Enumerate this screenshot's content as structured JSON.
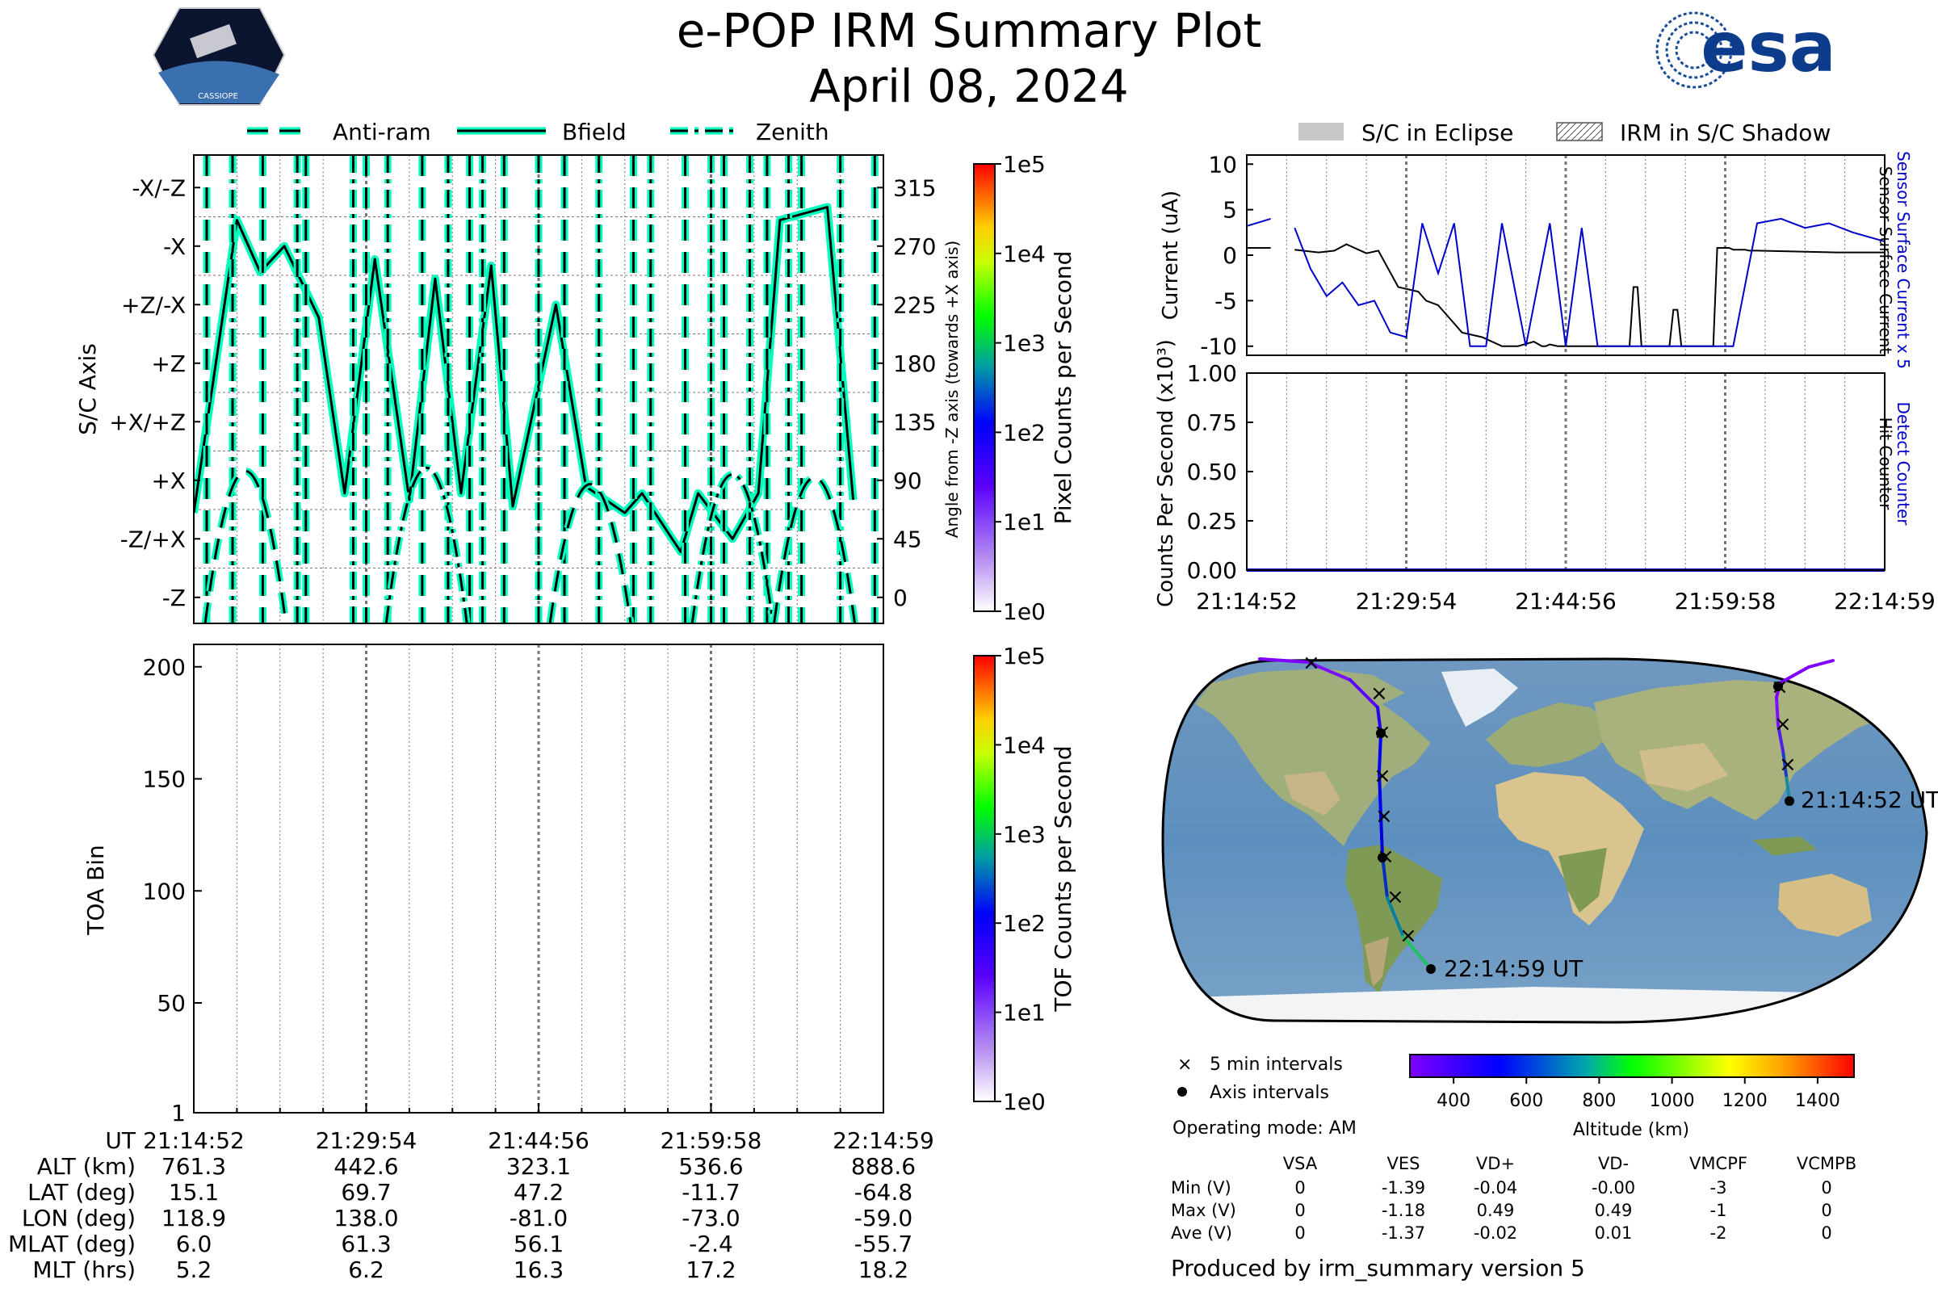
{
  "header": {
    "title": "e-POP IRM Summary Plot",
    "date": "April 08, 2024",
    "left_logo_text": "CASSIOPE",
    "right_logo_text": "esa"
  },
  "orientation_legend": [
    "Anti-ram",
    "Bfield",
    "Zenith"
  ],
  "eclipse_legend": [
    "S/C in Eclipse",
    "IRM in S/C Shadow"
  ],
  "chart_data": [
    {
      "id": "orientation",
      "type": "line",
      "ylabel": "S/C Axis",
      "y_tick_labels": [
        "-X/-Z",
        "-X",
        "+Z/-X",
        "+Z",
        "+X/+Z",
        "+X",
        "-Z/+X",
        "-Z"
      ],
      "y2label": "Angle from -Z axis (towards +X axis)",
      "y2_ticks": [
        315,
        270,
        225,
        180,
        135,
        90,
        45,
        0
      ],
      "ylim": [
        -20,
        340
      ],
      "colorbar": {
        "label": "Pixel Counts per Second",
        "ticks": [
          "1e5",
          "1e4",
          "1e3",
          "1e2",
          "1e1",
          "1e0"
        ]
      },
      "series": [
        {
          "name": "Bfield",
          "x_min": [
            0,
            5,
            7.7,
            10.5,
            14.5,
            17.5,
            21,
            25,
            28,
            31,
            34.5,
            37,
            42,
            45.5,
            50,
            52,
            56.5,
            58.5,
            62.5,
            65.5,
            68,
            73.5,
            76.5
          ],
          "y": [
            65,
            290,
            250,
            270,
            215,
            80,
            260,
            75,
            245,
            80,
            255,
            70,
            225,
            85,
            65,
            80,
            35,
            80,
            45,
            80,
            290,
            300,
            75
          ]
        }
      ]
    },
    {
      "id": "toa",
      "type": "heatmap",
      "ylabel": "TOA Bin",
      "y_ticks": [
        200,
        150,
        100,
        50,
        1
      ],
      "ylim": [
        1,
        210
      ],
      "colorbar": {
        "label": "TOF Counts per Second",
        "ticks": [
          "1e5",
          "1e4",
          "1e3",
          "1e2",
          "1e1",
          "1e0"
        ]
      }
    },
    {
      "id": "current",
      "type": "line",
      "ylabel": "Current (uA)",
      "y_ticks": [
        10,
        5,
        0,
        -5,
        -10
      ],
      "ylim": [
        -11,
        11
      ],
      "right_labels": [
        "Sensor Surface Current x 5",
        "Sensor Surface Current"
      ],
      "series": [
        {
          "name": "Sensor Surface Current",
          "color": "#000000",
          "x_min": [
            0,
            3,
            4.5,
            6,
            9,
            11,
            12.5,
            15,
            16.5,
            19,
            21.5,
            22.5,
            24,
            24.5,
            25,
            25.5,
            27,
            29.5,
            32,
            34,
            36,
            37,
            37.5,
            38,
            39,
            40.5,
            41.5,
            42.5,
            43,
            44,
            45,
            46,
            48,
            48.5,
            49,
            49.5,
            53,
            53.5,
            54,
            54.5,
            58.5,
            59,
            59.5,
            60,
            60.5,
            61,
            62.5,
            63,
            64,
            74,
            77,
            80
          ],
          "y": [
            0.8,
            0.8,
            null,
            0.6,
            0.3,
            0.5,
            1.2,
            0.2,
            0.5,
            -3.5,
            -4.0,
            -5.0,
            -5.5,
            -6.0,
            -6.5,
            -7.0,
            -8.5,
            -9.0,
            -10.0,
            -10.0,
            -9.5,
            -10.0,
            -10.0,
            -9.8,
            -10.0,
            -10.0,
            -10.0,
            -10.0,
            -10.0,
            -10.0,
            -10.0,
            -10.0,
            -10.0,
            -3.5,
            -3.5,
            -10.0,
            -10.0,
            -6.0,
            -6.0,
            -10.0,
            -10.0,
            0.8,
            0.8,
            0.8,
            0.8,
            0.6,
            0.6,
            0.5,
            0.5,
            0.3,
            0.3,
            0.3
          ]
        },
        {
          "name": "Sensor Surface Current x 5",
          "color": "#0000cc",
          "x_min": [
            0,
            3,
            4.5,
            6,
            8,
            10,
            12,
            14,
            16,
            18,
            20,
            22,
            24,
            26,
            28,
            30,
            32,
            35,
            38,
            40,
            42,
            44,
            46,
            48,
            50,
            52,
            55,
            58,
            61,
            64,
            67,
            70,
            73,
            76,
            80
          ],
          "y": [
            3.2,
            4.0,
            null,
            3.0,
            -1.5,
            -4.5,
            -3.0,
            -5.5,
            -5.0,
            -8.5,
            -9.0,
            3.5,
            -2.0,
            3.5,
            -10.0,
            -10.0,
            3.5,
            -10.0,
            3.5,
            -10.0,
            3.0,
            -10.0,
            -10.0,
            -10.0,
            -10.0,
            -10.0,
            -10.0,
            -10.0,
            -10.0,
            3.5,
            4.0,
            3.0,
            3.5,
            2.5,
            1.5
          ]
        }
      ]
    },
    {
      "id": "counts",
      "type": "line",
      "ylabel": "Counts Per Second (x10³)",
      "y_ticks": [
        "1.00",
        "0.75",
        "0.50",
        "0.25",
        "0.00"
      ],
      "ylim": [
        0,
        1
      ],
      "right_labels": [
        "Detect Counter",
        "Hit Counter"
      ],
      "series": [
        {
          "name": "Detect Counter",
          "color": "#0000cc",
          "x_min": [
            0,
            80
          ],
          "y": [
            0,
            0
          ]
        },
        {
          "name": "Hit Counter",
          "color": "#000000",
          "x_min": [
            0,
            80
          ],
          "y": [
            0,
            0
          ]
        }
      ]
    }
  ],
  "time_axis": {
    "ut_label": "UT",
    "ticks": [
      "21:14:52",
      "21:29:54",
      "21:44:56",
      "21:59:58",
      "22:14:59"
    ]
  },
  "ephemeris_table": {
    "rows": [
      {
        "label": "ALT (km)",
        "values": [
          "761.3",
          "442.6",
          "323.1",
          "536.6",
          "888.6"
        ]
      },
      {
        "label": "LAT (deg)",
        "values": [
          "15.1",
          "69.7",
          "47.2",
          "-11.7",
          "-64.8"
        ]
      },
      {
        "label": "LON (deg)",
        "values": [
          "118.9",
          "138.0",
          "-81.0",
          "-73.0",
          "-59.0"
        ]
      },
      {
        "label": "MLAT (deg)",
        "values": [
          "6.0",
          "61.3",
          "56.1",
          "-2.4",
          "-55.7"
        ]
      },
      {
        "label": "MLT (hrs)",
        "values": [
          "5.2",
          "6.2",
          "16.3",
          "17.2",
          "18.2"
        ]
      }
    ]
  },
  "map": {
    "start_label": "21:14:52 UT",
    "end_label": "22:14:59 UT",
    "legend_5min": "5 min intervals",
    "legend_axis": "Axis intervals",
    "altitude_label": "Altitude (km)",
    "altitude_ticks": [
      400,
      600,
      800,
      1000,
      1200,
      1400
    ]
  },
  "operating_mode": "Operating mode: AM",
  "voltage_table": {
    "columns": [
      "VSA",
      "VES",
      "VD+",
      "VD-",
      "VMCPF",
      "VCMPB"
    ],
    "rows": [
      {
        "label": "Min (V)",
        "values": [
          "0",
          "-1.39",
          "-0.04",
          "-0.00",
          "-3",
          "0"
        ]
      },
      {
        "label": "Max (V)",
        "values": [
          "0",
          "-1.18",
          "0.49",
          "0.49",
          "-1",
          "0"
        ]
      },
      {
        "label": "Ave (V)",
        "values": [
          "0",
          "-1.37",
          "-0.02",
          "0.01",
          "-2",
          "0"
        ]
      }
    ]
  },
  "footer": "Produced by irm_summary version 5"
}
